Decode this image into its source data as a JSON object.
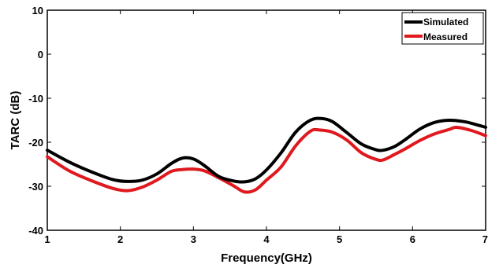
{
  "chart_data": {
    "type": "line",
    "title": "",
    "xlabel": "Frequency(GHz)",
    "ylabel": "TARC (dB)",
    "xlim": [
      1,
      7
    ],
    "ylim": [
      -40,
      10
    ],
    "xticks": [
      "1",
      "2",
      "3",
      "4",
      "5",
      "6",
      "7"
    ],
    "yticks": [
      "10",
      "0",
      "-10",
      "-20",
      "-30",
      "-40"
    ],
    "grid": false,
    "legend_position": "top-right",
    "series": [
      {
        "name": "Simulated",
        "color": "#000000",
        "x": [
          1.0,
          1.3,
          1.6,
          1.9,
          2.1,
          2.3,
          2.5,
          2.7,
          2.85,
          3.0,
          3.15,
          3.35,
          3.55,
          3.7,
          3.85,
          4.0,
          4.2,
          4.4,
          4.6,
          4.75,
          4.9,
          5.1,
          5.3,
          5.5,
          5.6,
          5.75,
          5.9,
          6.1,
          6.3,
          6.5,
          6.7,
          6.85,
          7.0
        ],
        "y": [
          -21.8,
          -24.5,
          -26.7,
          -28.5,
          -28.9,
          -28.6,
          -27.2,
          -24.8,
          -23.6,
          -23.8,
          -25.3,
          -27.8,
          -28.8,
          -29.0,
          -28.3,
          -26.3,
          -22.4,
          -17.7,
          -15.0,
          -14.6,
          -15.3,
          -17.8,
          -20.4,
          -21.7,
          -21.8,
          -21.0,
          -19.4,
          -17.0,
          -15.5,
          -15.0,
          -15.3,
          -15.9,
          -16.6
        ]
      },
      {
        "name": "Measured",
        "color": "#e0191e",
        "x": [
          1.0,
          1.3,
          1.6,
          1.9,
          2.1,
          2.3,
          2.5,
          2.7,
          2.85,
          3.0,
          3.15,
          3.35,
          3.55,
          3.7,
          3.85,
          4.0,
          4.2,
          4.4,
          4.6,
          4.72,
          4.9,
          5.1,
          5.3,
          5.5,
          5.6,
          5.75,
          5.9,
          6.1,
          6.3,
          6.5,
          6.6,
          6.8,
          7.0
        ],
        "y": [
          -23.3,
          -26.5,
          -28.7,
          -30.5,
          -31.0,
          -30.2,
          -28.6,
          -26.6,
          -26.2,
          -26.1,
          -26.5,
          -28.1,
          -29.9,
          -31.3,
          -30.8,
          -28.6,
          -25.6,
          -20.8,
          -17.5,
          -17.2,
          -17.7,
          -19.5,
          -22.4,
          -23.9,
          -24.0,
          -22.8,
          -21.5,
          -19.6,
          -18.1,
          -17.1,
          -16.6,
          -17.3,
          -18.5
        ]
      }
    ]
  }
}
